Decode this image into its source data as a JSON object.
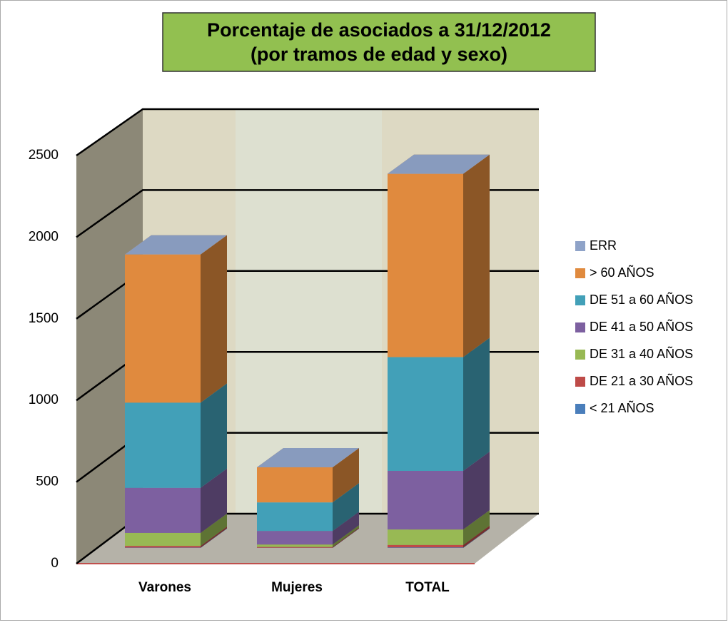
{
  "chart_data": {
    "type": "bar3d_stacked",
    "title": [
      "Porcentaje de asociados a 31/12/2012",
      "(por tramos de edad y sexo)"
    ],
    "categories": [
      "Varones",
      "Mujeres",
      "TOTAL"
    ],
    "series": [
      {
        "name": "< 21 AÑOS",
        "color": "#4a7ebb",
        "values": [
          2,
          1,
          3
        ]
      },
      {
        "name": "DE 21 a 30 AÑOS",
        "color": "#be4b48",
        "values": [
          10,
          5,
          15
        ]
      },
      {
        "name": "DE 31 a 40 AÑOS",
        "color": "#98b954",
        "values": [
          80,
          15,
          95
        ]
      },
      {
        "name": "DE 41 a 50 AÑOS",
        "color": "#7d60a0",
        "values": [
          276,
          83,
          359
        ]
      },
      {
        "name": "DE 51 a 60 AÑOS",
        "color": "#42a0b8",
        "values": [
          522,
          175,
          697
        ]
      },
      {
        "name": "> 60 AÑOS",
        "color": "#e08a3e",
        "values": [
          908,
          215,
          1123
        ]
      },
      {
        "name": "ERR",
        "color": "#8fa3c8",
        "values": [
          0,
          0,
          0
        ]
      }
    ],
    "ylim": [
      0,
      2500
    ],
    "yticks": [
      0,
      500,
      1000,
      1500,
      2000,
      2500
    ],
    "grid": true,
    "legend": "right"
  }
}
